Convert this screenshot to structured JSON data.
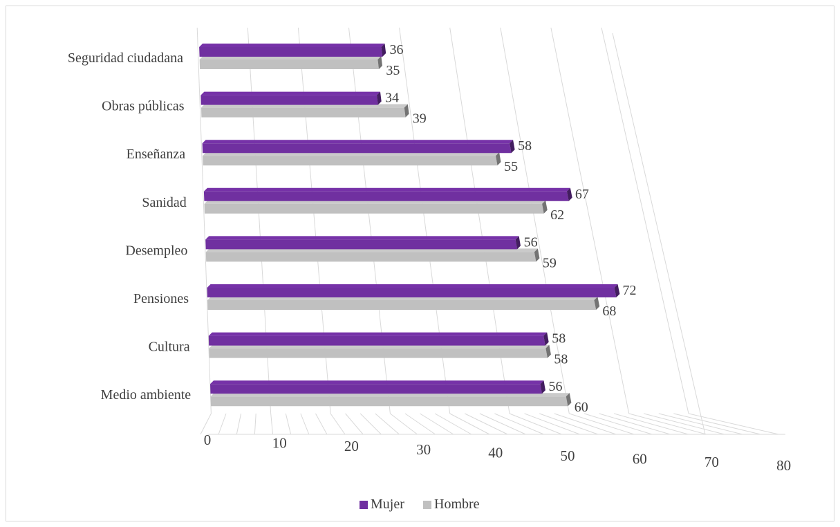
{
  "chart_data": {
    "type": "bar",
    "orientation": "horizontal",
    "categories": [
      "Seguridad ciudadana",
      "Obras públicas",
      "Enseñanza",
      "Sanidad",
      "Desempleo",
      "Pensiones",
      "Cultura",
      "Medio ambiente"
    ],
    "series": [
      {
        "name": "Mujer",
        "color": "#7030a0",
        "values": [
          36,
          34,
          58,
          67,
          56,
          72,
          58,
          56
        ]
      },
      {
        "name": "Hombre",
        "color": "#c0c0c0",
        "values": [
          35,
          39,
          55,
          62,
          59,
          68,
          58,
          60
        ]
      }
    ],
    "x_ticks": [
      "0",
      "10",
      "20",
      "30",
      "40",
      "50",
      "60",
      "70",
      "80"
    ],
    "xlim": [
      0,
      80
    ],
    "grid": true,
    "legend_position": "bottom",
    "style": "3d-perspective"
  }
}
